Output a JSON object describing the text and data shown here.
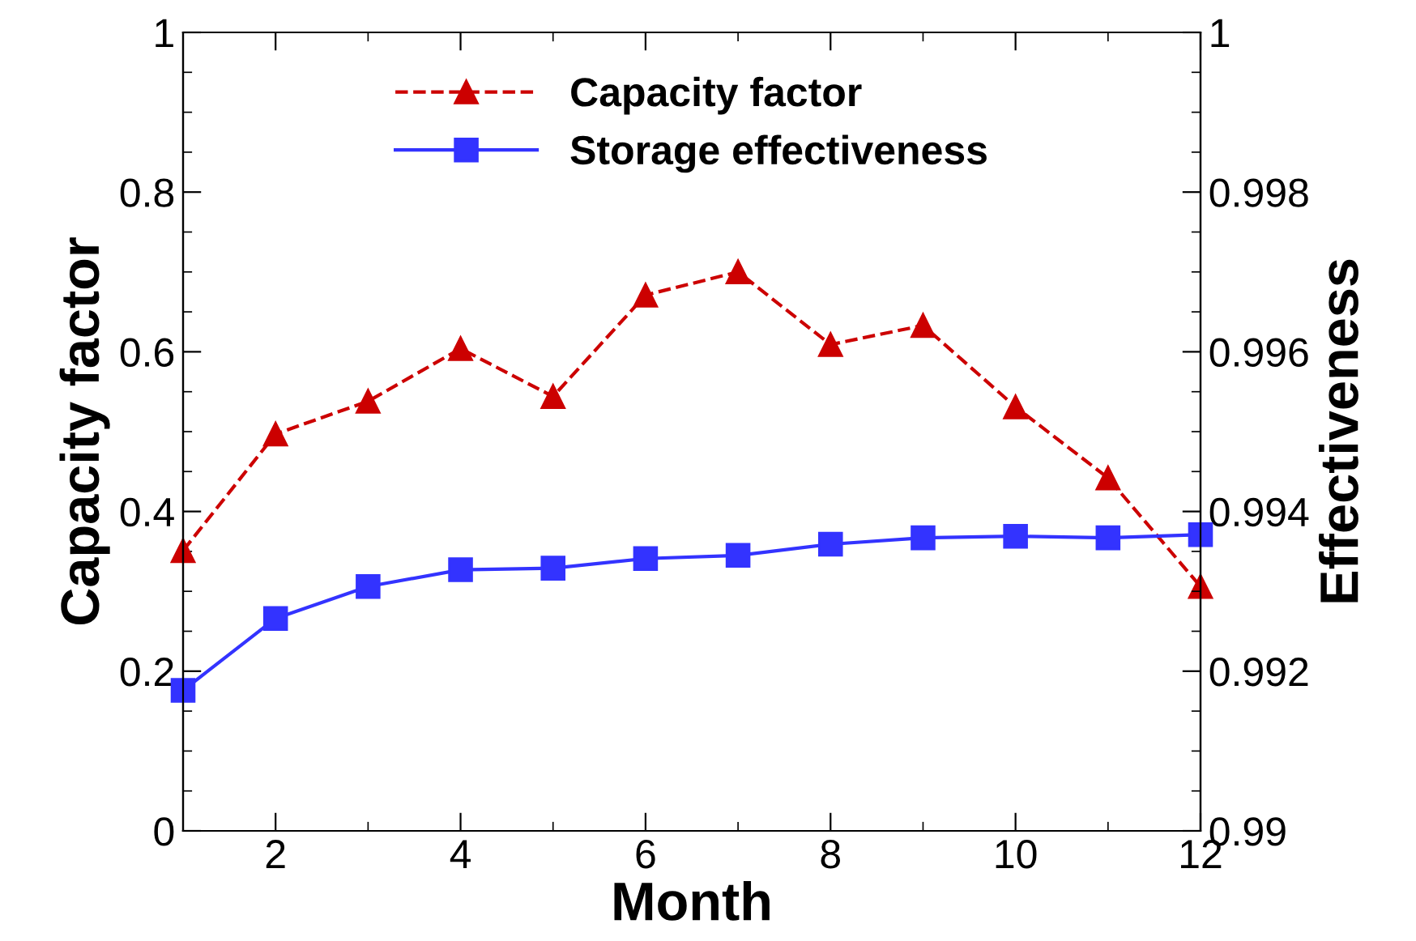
{
  "chart_data": {
    "type": "line",
    "xlabel": "Month",
    "ylabel": "Capacity factor",
    "y2label": "Effectiveness",
    "x": [
      1,
      2,
      3,
      4,
      5,
      6,
      7,
      8,
      9,
      10,
      11,
      12
    ],
    "series": [
      {
        "name": "Capacity factor",
        "color": "#cc0000",
        "marker": "triangle",
        "line_style": "dashed",
        "values": [
          0.351,
          0.497,
          0.538,
          0.604,
          0.544,
          0.671,
          0.7,
          0.609,
          0.633,
          0.531,
          0.442,
          0.306
        ]
      },
      {
        "name": "Storage effectiveness",
        "color": "#3333ff",
        "marker": "square",
        "line_style": "solid",
        "axis": "y2",
        "values": [
          0.99176,
          0.99266,
          0.99306,
          0.99327,
          0.99329,
          0.99341,
          0.99345,
          0.99359,
          0.99367,
          0.99369,
          0.99367,
          0.99371
        ]
      }
    ],
    "xlim": [
      1,
      12
    ],
    "xticks": [
      2,
      4,
      6,
      8,
      10,
      12
    ],
    "ylim": [
      0,
      1
    ],
    "yticks": [
      0,
      0.2,
      0.4,
      0.6,
      0.8,
      1
    ],
    "y2lim": [
      0.99,
      1
    ],
    "y2ticks": [
      0.99,
      0.992,
      0.994,
      0.996,
      0.998,
      1
    ],
    "grid": false,
    "legend": "top"
  }
}
